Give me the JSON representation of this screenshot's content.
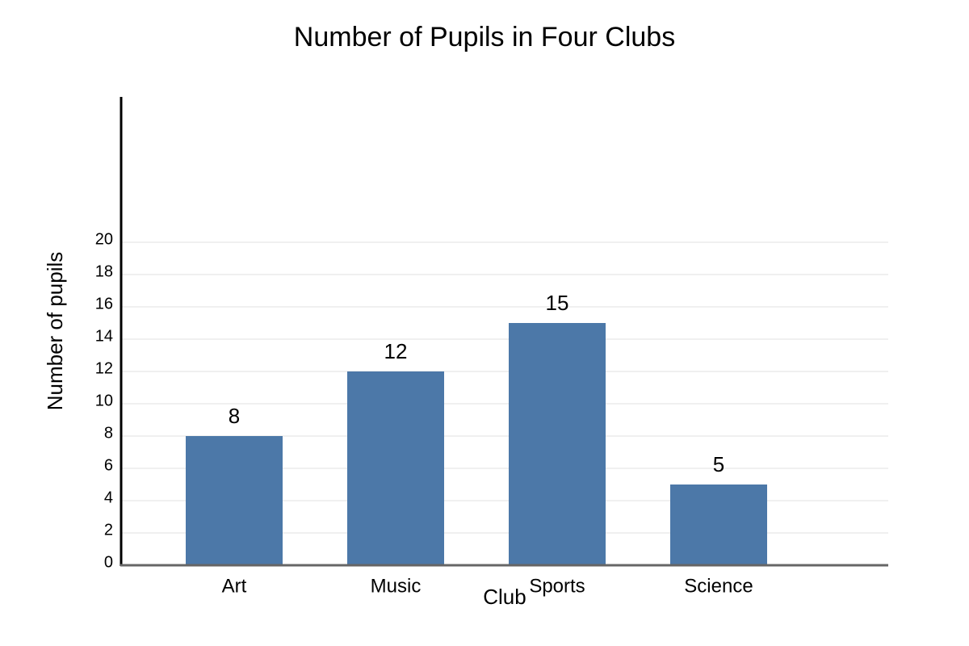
{
  "chart_data": {
    "type": "bar",
    "title": "Number of Pupils in Four Clubs",
    "x_label": "Club",
    "y_label": "Number of pupils",
    "categories": [
      "Art",
      "Music",
      "Sports",
      "Science"
    ],
    "values": [
      8,
      12,
      15,
      5
    ],
    "color": "#4c78a8",
    "ylim": [
      0,
      29
    ],
    "yticks": [
      0,
      2,
      4,
      6,
      8,
      10,
      12,
      14,
      16,
      18,
      20
    ],
    "grid": true
  }
}
